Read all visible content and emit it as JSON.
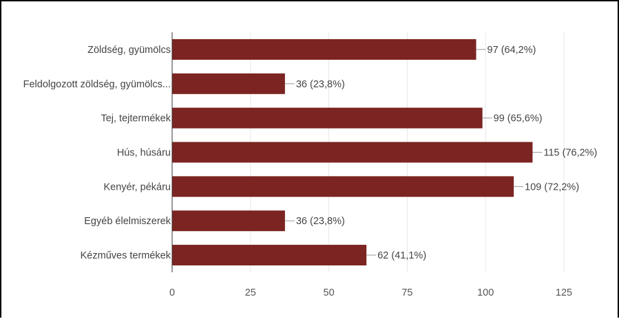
{
  "chart_data": {
    "type": "bar",
    "orientation": "horizontal",
    "categories": [
      "Zöldség, gyümölcs",
      "Feldolgozott zöldség, gyümölcs...",
      "Tej, tejtermékek",
      "Hús, húsáru",
      "Kenyér, pékáru",
      "Egyéb élelmiszerek",
      "Kézműves termékek"
    ],
    "values": [
      97,
      36,
      99,
      115,
      109,
      36,
      62
    ],
    "data_labels": [
      "97 (64,2%)",
      "36 (23,8%)",
      "99 (65,6%)",
      "115 (76,2%)",
      "109 (72,2%)",
      "36 (23,8%)",
      "62 (41,1%)"
    ],
    "x_ticks": [
      "0",
      "25",
      "50",
      "75",
      "100",
      "125"
    ],
    "xlim": [
      0,
      125
    ],
    "grid": true,
    "bar_color": "#7b2421",
    "title": "",
    "xlabel": "",
    "ylabel": ""
  }
}
